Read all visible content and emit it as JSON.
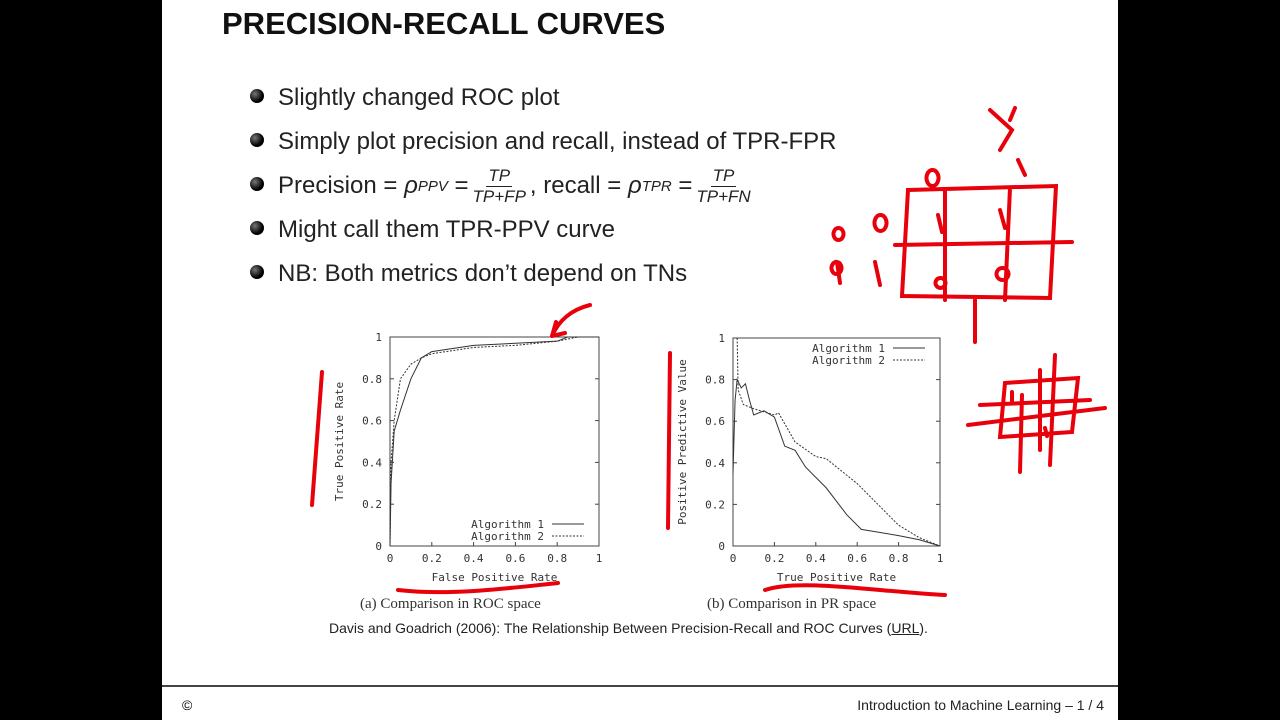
{
  "slide": {
    "title": "PRECISION-RECALL CURVES",
    "bullets": [
      "Slightly changed ROC plot",
      "Simply plot precision and recall, instead of TPR-FPR",
      "Might call them TPR-PPV curve",
      "NB: Both metrics don’t depend on TNs"
    ],
    "formula": {
      "precision_label": "Precision",
      "eq": "=",
      "rho": "ρ",
      "ppv": "PPV",
      "tp": "TP",
      "tp_fp": "TP+FP",
      "recall_label": ", recall",
      "tpr": "TPR",
      "tp_fn": "TP+FN"
    },
    "captions": [
      "(a) Comparison in ROC space",
      "(b) Comparison in PR space"
    ],
    "citation_text": "Davis and Goadrich (2006): The Relationship Between Precision-Recall and ROC Curves (",
    "citation_link": "URL",
    "citation_end": ").",
    "copyright": "©",
    "footer": "Introduction to Machine Learning  –  1 / 4"
  },
  "chart_data": [
    {
      "type": "line",
      "xlabel": "False Positive Rate",
      "ylabel": "True Positive Rate",
      "xlim": [
        0,
        1
      ],
      "ylim": [
        0,
        1
      ],
      "xticks": [
        "0",
        "0.2",
        "0.4",
        "0.6",
        "0.8",
        "1"
      ],
      "yticks": [
        "0",
        "0.2",
        "0.4",
        "0.6",
        "0.8",
        "1"
      ],
      "legend": "bottom-right",
      "series": [
        {
          "name": "Algorithm 1",
          "style": "solid",
          "x": [
            0,
            0.005,
            0.02,
            0.05,
            0.1,
            0.15,
            0.2,
            0.4,
            0.6,
            0.8,
            0.85,
            1
          ],
          "y": [
            0,
            0.3,
            0.55,
            0.65,
            0.8,
            0.9,
            0.93,
            0.96,
            0.97,
            0.98,
            1,
            1
          ]
        },
        {
          "name": "Algorithm 2",
          "style": "dotted",
          "x": [
            0,
            0.005,
            0.02,
            0.05,
            0.1,
            0.15,
            0.2,
            0.4,
            0.6,
            0.8,
            0.9,
            1
          ],
          "y": [
            0,
            0.4,
            0.6,
            0.8,
            0.87,
            0.9,
            0.92,
            0.95,
            0.96,
            0.98,
            1,
            1
          ]
        }
      ]
    },
    {
      "type": "line",
      "xlabel": "True Positive Rate",
      "ylabel": "Positive Predictive Value",
      "xlim": [
        0,
        1
      ],
      "ylim": [
        0,
        1
      ],
      "xticks": [
        "0",
        "0.2",
        "0.4",
        "0.6",
        "0.8",
        "1"
      ],
      "yticks": [
        "0",
        "0.2",
        "0.4",
        "0.6",
        "0.8",
        "1"
      ],
      "legend": "top-right",
      "series": [
        {
          "name": "Algorithm 1",
          "style": "solid",
          "x": [
            0,
            0.01,
            0.02,
            0.04,
            0.06,
            0.08,
            0.1,
            0.15,
            0.2,
            0.25,
            0.3,
            0.35,
            0.45,
            0.55,
            0.62,
            0.8,
            0.9,
            1
          ],
          "y": [
            0.35,
            0.7,
            0.8,
            0.76,
            0.78,
            0.7,
            0.63,
            0.65,
            0.62,
            0.48,
            0.46,
            0.38,
            0.28,
            0.15,
            0.08,
            0.05,
            0.03,
            0
          ]
        },
        {
          "name": "Algorithm 2",
          "style": "dotted",
          "x": [
            0.02,
            0.025,
            0.05,
            0.1,
            0.2,
            0.22,
            0.3,
            0.4,
            0.45,
            0.6,
            0.7,
            0.8,
            0.9,
            1
          ],
          "y": [
            1,
            0.75,
            0.68,
            0.66,
            0.63,
            0.64,
            0.5,
            0.43,
            0.42,
            0.3,
            0.2,
            0.1,
            0.04,
            0
          ]
        }
      ]
    }
  ],
  "colors": {
    "ink": "#e8000b",
    "text": "#222222",
    "background": "#ffffff"
  }
}
